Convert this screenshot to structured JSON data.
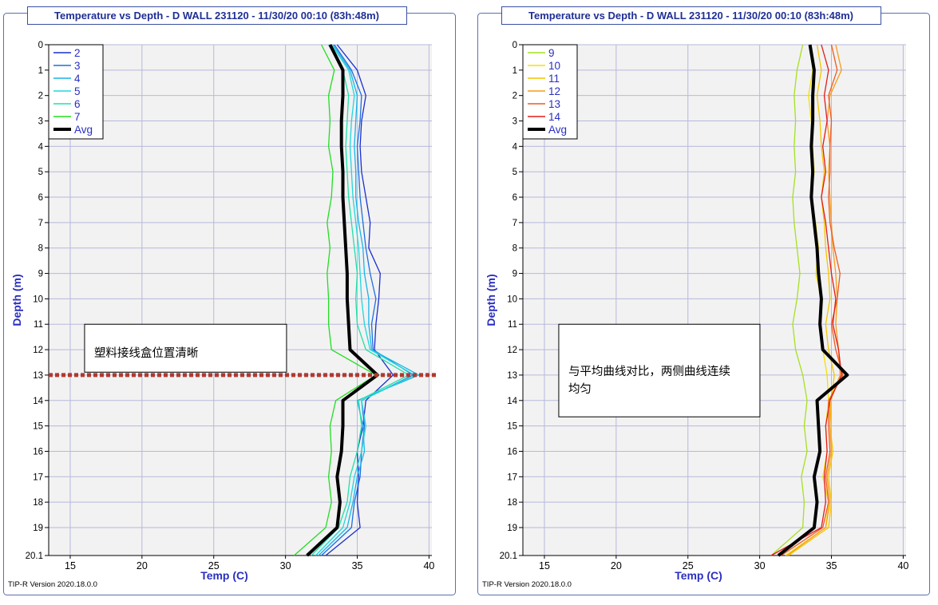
{
  "chart_data": [
    {
      "type": "line",
      "title": "Temperature vs Depth - D WALL 231120 - 11/30/20 00:10 (83h:48m)",
      "xlabel": "Temp (C)",
      "ylabel": "Depth (m)",
      "xlim": [
        13.5,
        40.2
      ],
      "ylim": [
        20.1,
        0
      ],
      "xticks": [
        15,
        20,
        25,
        30,
        35,
        40
      ],
      "yticks": [
        0,
        1,
        2,
        3,
        4,
        5,
        6,
        7,
        8,
        9,
        10,
        11,
        12,
        13,
        14,
        15,
        16,
        17,
        18,
        19,
        20.1
      ],
      "ytick_labels": [
        "0",
        "1",
        "2",
        "3",
        "4",
        "5",
        "6",
        "7",
        "8",
        "9",
        "10",
        "11",
        "12",
        "13",
        "14",
        "15",
        "16",
        "17",
        "18",
        "19",
        "20.1"
      ],
      "grid": true,
      "legend_position": "top-left",
      "version_text": "TIP-R Version 2020.18.0.0",
      "annotation": {
        "text": "塑料接线盒位置清晰",
        "x": 16.0,
        "depth": 11.0
      },
      "marker_line": {
        "depth": 13.0,
        "color": "#b03a2e"
      },
      "depth": [
        0,
        1,
        2,
        3,
        4,
        5,
        6,
        7,
        8,
        9,
        10,
        11,
        12,
        13,
        14,
        15,
        16,
        17,
        18,
        19,
        20.1
      ],
      "series": [
        {
          "name": "2",
          "color": "#1a2fd0",
          "values": [
            33.6,
            35.0,
            35.6,
            35.3,
            35.2,
            35.3,
            35.6,
            35.9,
            35.8,
            36.6,
            36.5,
            36.3,
            36.2,
            37.5,
            35.6,
            35.4,
            35.0,
            35.1,
            35.0,
            35.2,
            32.8
          ]
        },
        {
          "name": "3",
          "color": "#1e6fe0",
          "values": [
            33.4,
            34.6,
            35.3,
            35.2,
            35.0,
            35.1,
            35.2,
            35.4,
            35.6,
            35.9,
            36.3,
            36.0,
            36.1,
            38.9,
            35.3,
            35.5,
            35.3,
            35.2,
            34.8,
            34.6,
            32.5
          ]
        },
        {
          "name": "4",
          "color": "#18b4e8",
          "values": [
            33.3,
            34.5,
            35.0,
            34.9,
            34.8,
            34.9,
            34.9,
            35.1,
            35.4,
            35.5,
            35.8,
            35.8,
            36.0,
            39.3,
            35.0,
            35.4,
            35.5,
            35.0,
            34.7,
            34.3,
            32.3
          ]
        },
        {
          "name": "5",
          "color": "#22d6dc",
          "values": [
            33.2,
            34.4,
            34.8,
            34.6,
            34.5,
            34.6,
            34.7,
            34.9,
            35.1,
            35.2,
            35.3,
            35.5,
            35.9,
            39.0,
            35.3,
            35.6,
            35.3,
            34.8,
            34.5,
            34.0,
            32.1
          ]
        },
        {
          "name": "6",
          "color": "#20e0a8",
          "values": [
            33.0,
            34.0,
            34.4,
            34.3,
            34.2,
            34.3,
            34.4,
            34.6,
            34.8,
            35.0,
            34.9,
            35.0,
            35.6,
            38.6,
            35.1,
            35.3,
            35.0,
            34.5,
            34.3,
            33.7,
            31.8
          ]
        },
        {
          "name": "7",
          "color": "#22dd22",
          "values": [
            32.5,
            33.4,
            33.0,
            33.1,
            33.0,
            33.3,
            33.2,
            32.9,
            33.1,
            32.9,
            33.0,
            33.0,
            33.2,
            36.3,
            33.5,
            33.1,
            33.2,
            33.0,
            33.2,
            32.8,
            30.6
          ]
        },
        {
          "name": "Avg",
          "color": "#000000",
          "values": [
            33.1,
            34.0,
            34.0,
            33.9,
            33.9,
            34.0,
            34.0,
            34.1,
            34.2,
            34.3,
            34.3,
            34.4,
            34.5,
            36.4,
            34.0,
            34.0,
            33.9,
            33.6,
            33.8,
            33.6,
            31.5
          ]
        }
      ]
    },
    {
      "type": "line",
      "title": "Temperature vs Depth - D WALL 231120 - 11/30/20 00:10 (83h:48m)",
      "xlabel": "Temp (C)",
      "ylabel": "Depth (m)",
      "xlim": [
        13.5,
        40.2
      ],
      "ylim": [
        20.1,
        0
      ],
      "xticks": [
        15,
        20,
        25,
        30,
        35,
        40
      ],
      "yticks": [
        0,
        1,
        2,
        3,
        4,
        5,
        6,
        7,
        8,
        9,
        10,
        11,
        12,
        13,
        14,
        15,
        16,
        17,
        18,
        19,
        20.1
      ],
      "ytick_labels": [
        "0",
        "1",
        "2",
        "3",
        "4",
        "5",
        "6",
        "7",
        "8",
        "9",
        "10",
        "11",
        "12",
        "13",
        "14",
        "15",
        "16",
        "17",
        "18",
        "19",
        "20.1"
      ],
      "grid": true,
      "legend_position": "top-left",
      "version_text": "TIP-R Version 2020.18.0.0",
      "annotation": {
        "text": "与平均曲线对比，两侧曲线连续均匀",
        "x": 16.0,
        "depth": 11.0
      },
      "depth": [
        0,
        1,
        2,
        3,
        4,
        5,
        6,
        7,
        8,
        9,
        10,
        11,
        12,
        13,
        14,
        15,
        16,
        17,
        18,
        19,
        20.1
      ],
      "series": [
        {
          "name": "9",
          "color": "#a6e020",
          "values": [
            33.0,
            32.6,
            32.4,
            32.5,
            32.4,
            32.5,
            32.3,
            32.4,
            32.6,
            32.8,
            32.6,
            32.3,
            32.5,
            33.0,
            33.3,
            33.1,
            33.3,
            32.9,
            33.1,
            33.0,
            30.8
          ]
        },
        {
          "name": "10",
          "color": "#f2e200",
          "values": [
            33.5,
            33.7,
            33.4,
            33.6,
            33.7,
            33.8,
            33.6,
            33.9,
            34.1,
            33.9,
            34.3,
            34.2,
            34.4,
            34.7,
            34.8,
            34.6,
            34.7,
            34.4,
            34.8,
            34.6,
            31.8
          ]
        },
        {
          "name": "11",
          "color": "#f5c400",
          "values": [
            34.0,
            34.3,
            34.0,
            34.2,
            34.3,
            34.5,
            34.3,
            34.5,
            34.6,
            34.8,
            34.9,
            34.6,
            34.8,
            35.2,
            35.0,
            34.9,
            35.1,
            34.8,
            35.0,
            34.8,
            32.0
          ]
        },
        {
          "name": "12",
          "color": "#f59e1a",
          "values": [
            35.3,
            35.7,
            34.9,
            34.7,
            34.9,
            34.8,
            34.9,
            35.0,
            35.1,
            35.3,
            35.4,
            35.3,
            35.5,
            35.6,
            34.9,
            34.9,
            35.0,
            34.7,
            34.9,
            34.6,
            31.9
          ]
        },
        {
          "name": "13",
          "color": "#f05a20",
          "values": [
            35.0,
            35.4,
            34.8,
            35.0,
            34.9,
            34.9,
            34.8,
            34.9,
            35.2,
            35.6,
            35.4,
            35.0,
            35.3,
            35.8,
            34.8,
            34.8,
            34.9,
            34.6,
            34.8,
            34.4,
            31.5
          ]
        },
        {
          "name": "14",
          "color": "#e21b1b",
          "values": [
            34.3,
            34.8,
            34.5,
            34.7,
            34.4,
            34.6,
            34.3,
            34.6,
            34.8,
            35.0,
            35.3,
            35.1,
            35.5,
            35.7,
            34.9,
            34.6,
            34.7,
            34.5,
            34.6,
            34.3,
            30.8
          ]
        },
        {
          "name": "Avg",
          "color": "#000000",
          "values": [
            33.5,
            33.8,
            33.7,
            33.7,
            33.6,
            33.7,
            33.6,
            33.8,
            34.0,
            34.1,
            34.3,
            34.2,
            34.4,
            36.1,
            34.0,
            34.1,
            34.2,
            33.8,
            34.0,
            33.8,
            31.3
          ]
        }
      ]
    }
  ]
}
